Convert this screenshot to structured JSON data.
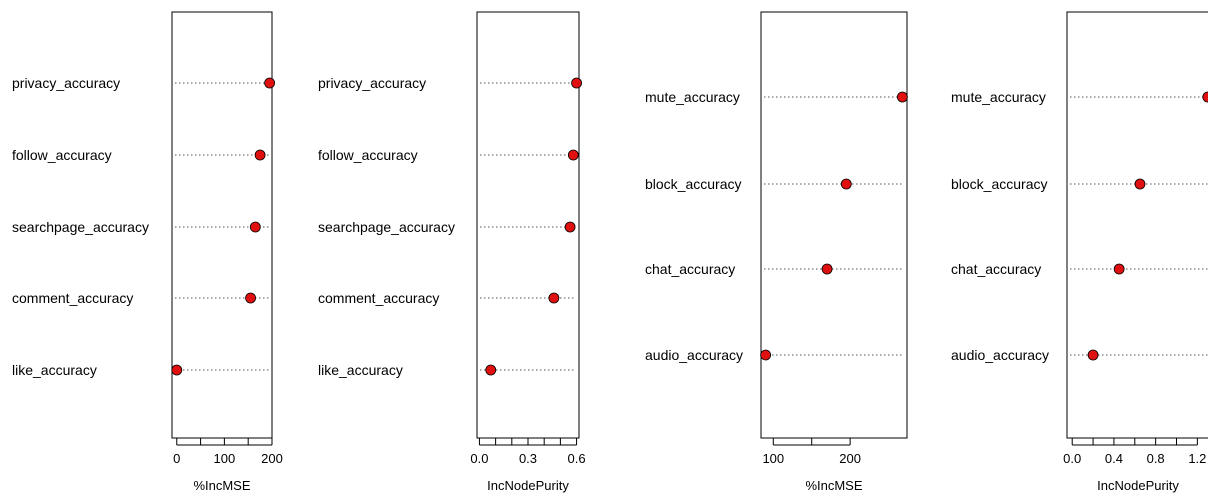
{
  "chart_data": [
    {
      "type": "dotchart",
      "categories": [
        "privacy_accuracy",
        "follow_accuracy",
        "searchpage_accuracy",
        "comment_accuracy",
        "like_accuracy"
      ],
      "values": [
        195,
        175,
        165,
        155,
        0
      ],
      "xlabel": "%IncMSE",
      "xticks": [
        0,
        100,
        200
      ],
      "xlim": [
        -10,
        200
      ],
      "grid": "dotted",
      "marker_color": "#e01010"
    },
    {
      "type": "dotchart",
      "categories": [
        "privacy_accuracy",
        "follow_accuracy",
        "searchpage_accuracy",
        "comment_accuracy",
        "like_accuracy"
      ],
      "values": [
        0.6,
        0.58,
        0.56,
        0.46,
        0.07
      ],
      "xlabel": "IncNodePurity",
      "xticks": [
        0.0,
        0.3,
        0.6
      ],
      "xlim": [
        -0.015,
        0.615
      ],
      "grid": "dotted",
      "marker_color": "#e01010"
    },
    {
      "type": "dotchart",
      "categories": [
        "mute_accuracy",
        "block_accuracy",
        "chat_accuracy",
        "audio_accuracy"
      ],
      "values": [
        268,
        195,
        170,
        90
      ],
      "xlabel": "%IncMSE",
      "xticks": [
        100,
        200
      ],
      "xlim": [
        84,
        274
      ],
      "grid": "dotted",
      "marker_color": "#e01010"
    },
    {
      "type": "dotchart",
      "categories": [
        "mute_accuracy",
        "block_accuracy",
        "chat_accuracy",
        "audio_accuracy"
      ],
      "values": [
        1.3,
        0.65,
        0.45,
        0.2
      ],
      "xlabel": "IncNodePurity",
      "xticks": [
        0.0,
        0.4,
        0.8,
        1.2
      ],
      "xlim": [
        -0.05,
        1.35
      ],
      "grid": "dotted",
      "marker_color": "#e01010"
    }
  ]
}
